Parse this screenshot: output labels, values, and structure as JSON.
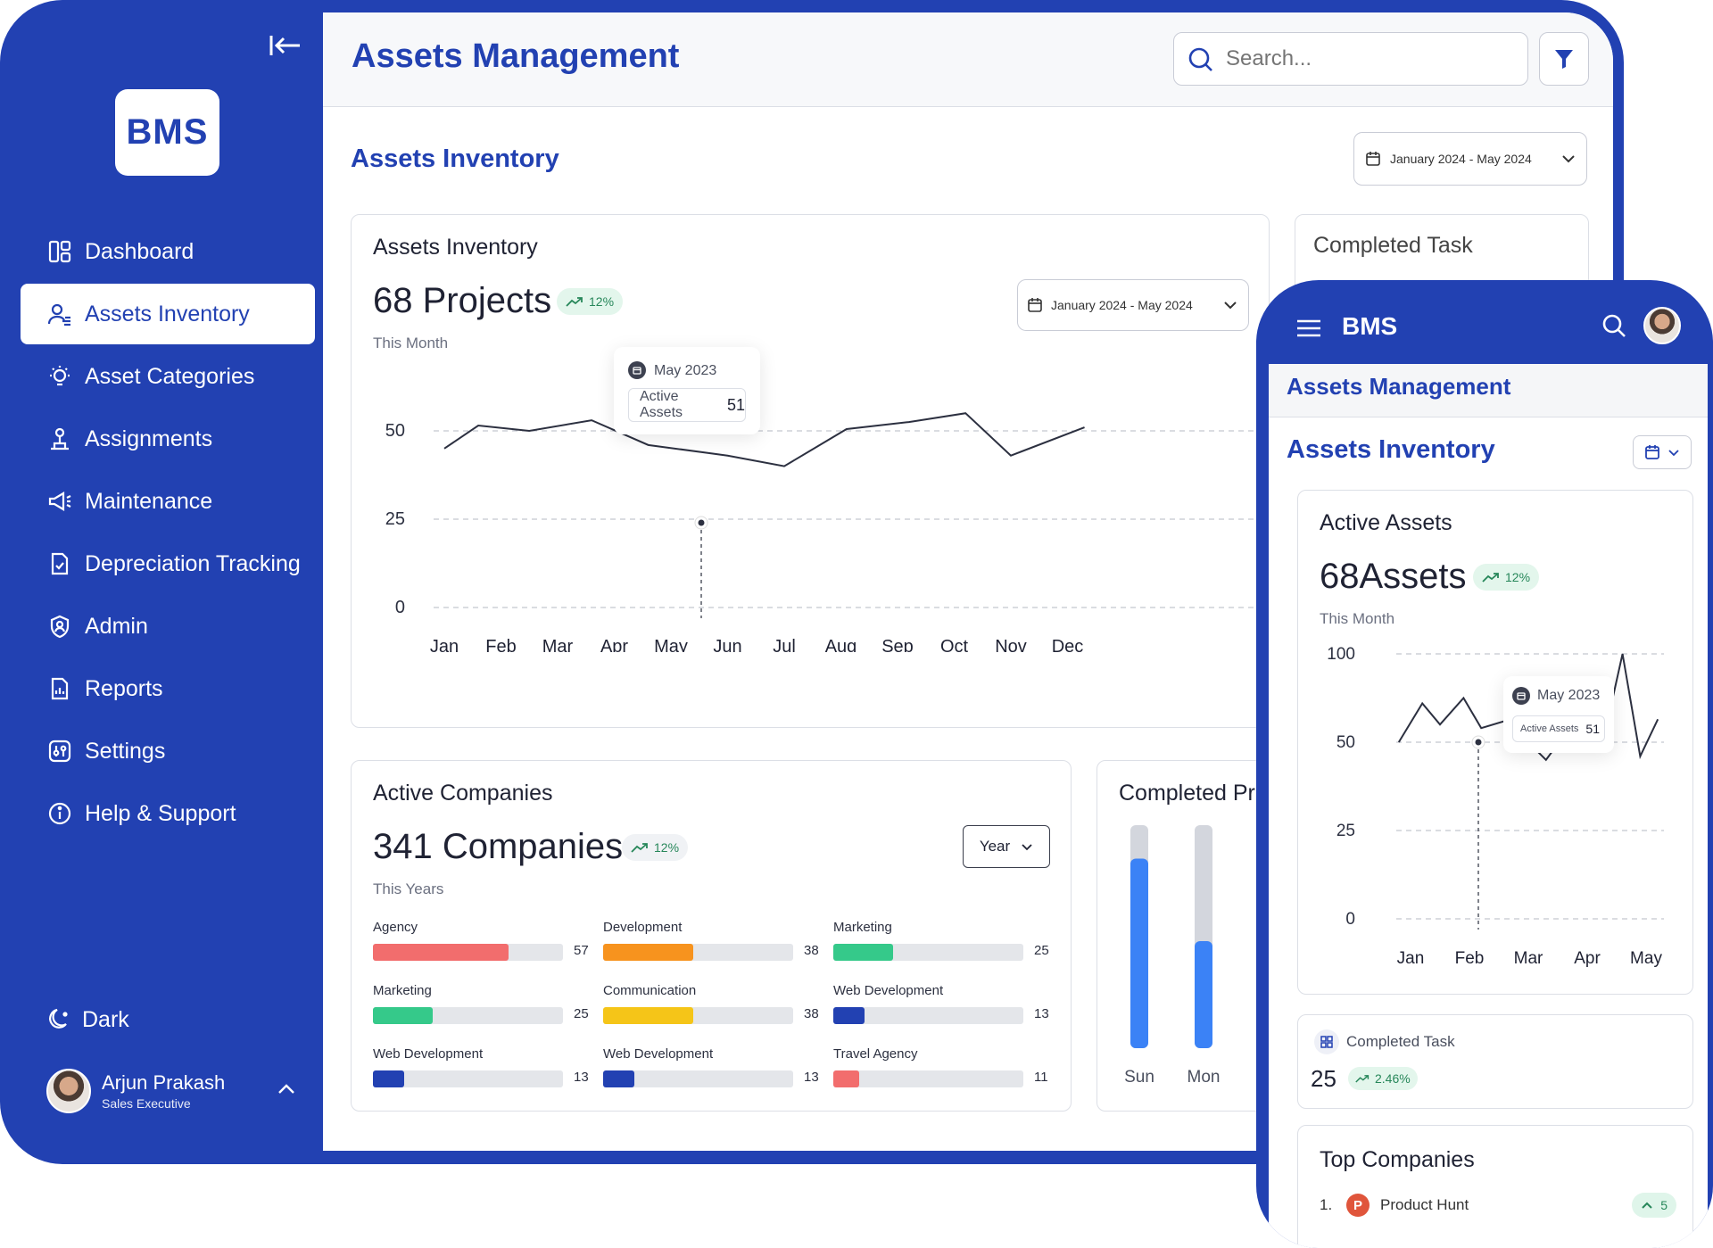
{
  "sidebar": {
    "logo": "BMS",
    "items": [
      {
        "label": "Dashboard"
      },
      {
        "label": "Assets Inventory"
      },
      {
        "label": "Asset Categories"
      },
      {
        "label": "Assignments"
      },
      {
        "label": "Maintenance"
      },
      {
        "label": "Depreciation Tracking"
      },
      {
        "label": "Admin"
      },
      {
        "label": "Reports"
      },
      {
        "label": "Settings"
      },
      {
        "label": "Help & Support"
      }
    ],
    "dark_label": "Dark",
    "user": {
      "name": "Arjun Prakash",
      "role": "Sales Executive"
    }
  },
  "header": {
    "title": "Assets Management",
    "search_placeholder": "Search..."
  },
  "main": {
    "section_title": "Assets Inventory",
    "date_range": "January 2024 - May 2024",
    "inventory_card": {
      "title": "Assets Inventory",
      "big": "68 Projects",
      "trend": "12%",
      "period": "This Month",
      "date_range": "January 2024 - May 2024",
      "tooltip": {
        "month": "May 2023",
        "label": "Active Assets",
        "value": "51"
      }
    },
    "completed_task_title": "Completed Task",
    "companies_card": {
      "title": "Active Companies",
      "big": "341 Companies",
      "trend": "12%",
      "period": "This Years",
      "select": "Year",
      "bars": [
        {
          "label": "Agency",
          "value": 57,
          "color": "#f26d6d"
        },
        {
          "label": "Development",
          "value": 38,
          "color": "#f7931e"
        },
        {
          "label": "Marketing",
          "value": 25,
          "color": "#35c98a"
        },
        {
          "label": "Marketing",
          "value": 25,
          "color": "#35c98a"
        },
        {
          "label": "Communication",
          "value": 38,
          "color": "#f5c518"
        },
        {
          "label": "Web Development",
          "value": 13,
          "color": "#2241b2"
        },
        {
          "label": "Web Development",
          "value": 13,
          "color": "#2241b2"
        },
        {
          "label": "Web Development",
          "value": 13,
          "color": "#2241b2"
        },
        {
          "label": "Travel Agency",
          "value": 11,
          "color": "#f26d6d"
        }
      ]
    },
    "completed_projects": {
      "title": "Completed Pr",
      "days": [
        "Sun",
        "Mon"
      ]
    }
  },
  "phone": {
    "logo": "BMS",
    "title": "Assets Management",
    "section_title": "Assets Inventory",
    "active_card": {
      "title": "Active Assets",
      "big": "68Assets",
      "trend": "12%",
      "period": "This Month",
      "tooltip": {
        "month": "May 2023",
        "label": "Active Assets",
        "value": "51"
      }
    },
    "completed_task": {
      "title": "Completed Task",
      "value": "25",
      "trend": "2.46%"
    },
    "top_companies": {
      "title": "Top Companies",
      "items": [
        {
          "rank": "1.",
          "name": "Product Hunt",
          "count": "5",
          "initial": "P"
        }
      ]
    }
  },
  "chart_data": [
    {
      "type": "line",
      "title": "Assets Inventory",
      "categories": [
        "Jan",
        "Feb",
        "Mar",
        "Apr",
        "May",
        "Jun",
        "Jul",
        "Aug",
        "Sep",
        "Oct",
        "Nov",
        "Dec"
      ],
      "ylim": [
        0,
        100
      ],
      "yticks": [
        0,
        25,
        50,
        100
      ],
      "x": [
        0,
        0.6,
        1.5,
        2.6,
        3.6,
        5,
        6,
        7.1,
        8.2,
        9.2,
        10,
        11.3
      ],
      "values": [
        45,
        53,
        50,
        56,
        46,
        43,
        40,
        51,
        55,
        60,
        43,
        52
      ],
      "grid": true
    },
    {
      "type": "line",
      "title": "Active Assets",
      "categories": [
        "Jan",
        "Feb",
        "Mar",
        "Apr",
        "May"
      ],
      "ylim": [
        0,
        100
      ],
      "yticks": [
        0,
        25,
        50,
        100
      ],
      "x": [
        -0.2,
        0.2,
        0.5,
        0.9,
        1.2,
        1.6,
        2.0,
        2.3,
        2.7,
        3.0,
        3.3,
        3.6,
        3.9,
        4.2
      ],
      "values": [
        50,
        72,
        60,
        75,
        58,
        62,
        50,
        45,
        58,
        50,
        55,
        100,
        46,
        63
      ],
      "grid": true
    },
    {
      "type": "bar",
      "title": "Completed Pr",
      "categories": [
        "Sun",
        "Mon"
      ],
      "values": [
        85,
        48
      ],
      "ylim": [
        0,
        100
      ]
    }
  ]
}
